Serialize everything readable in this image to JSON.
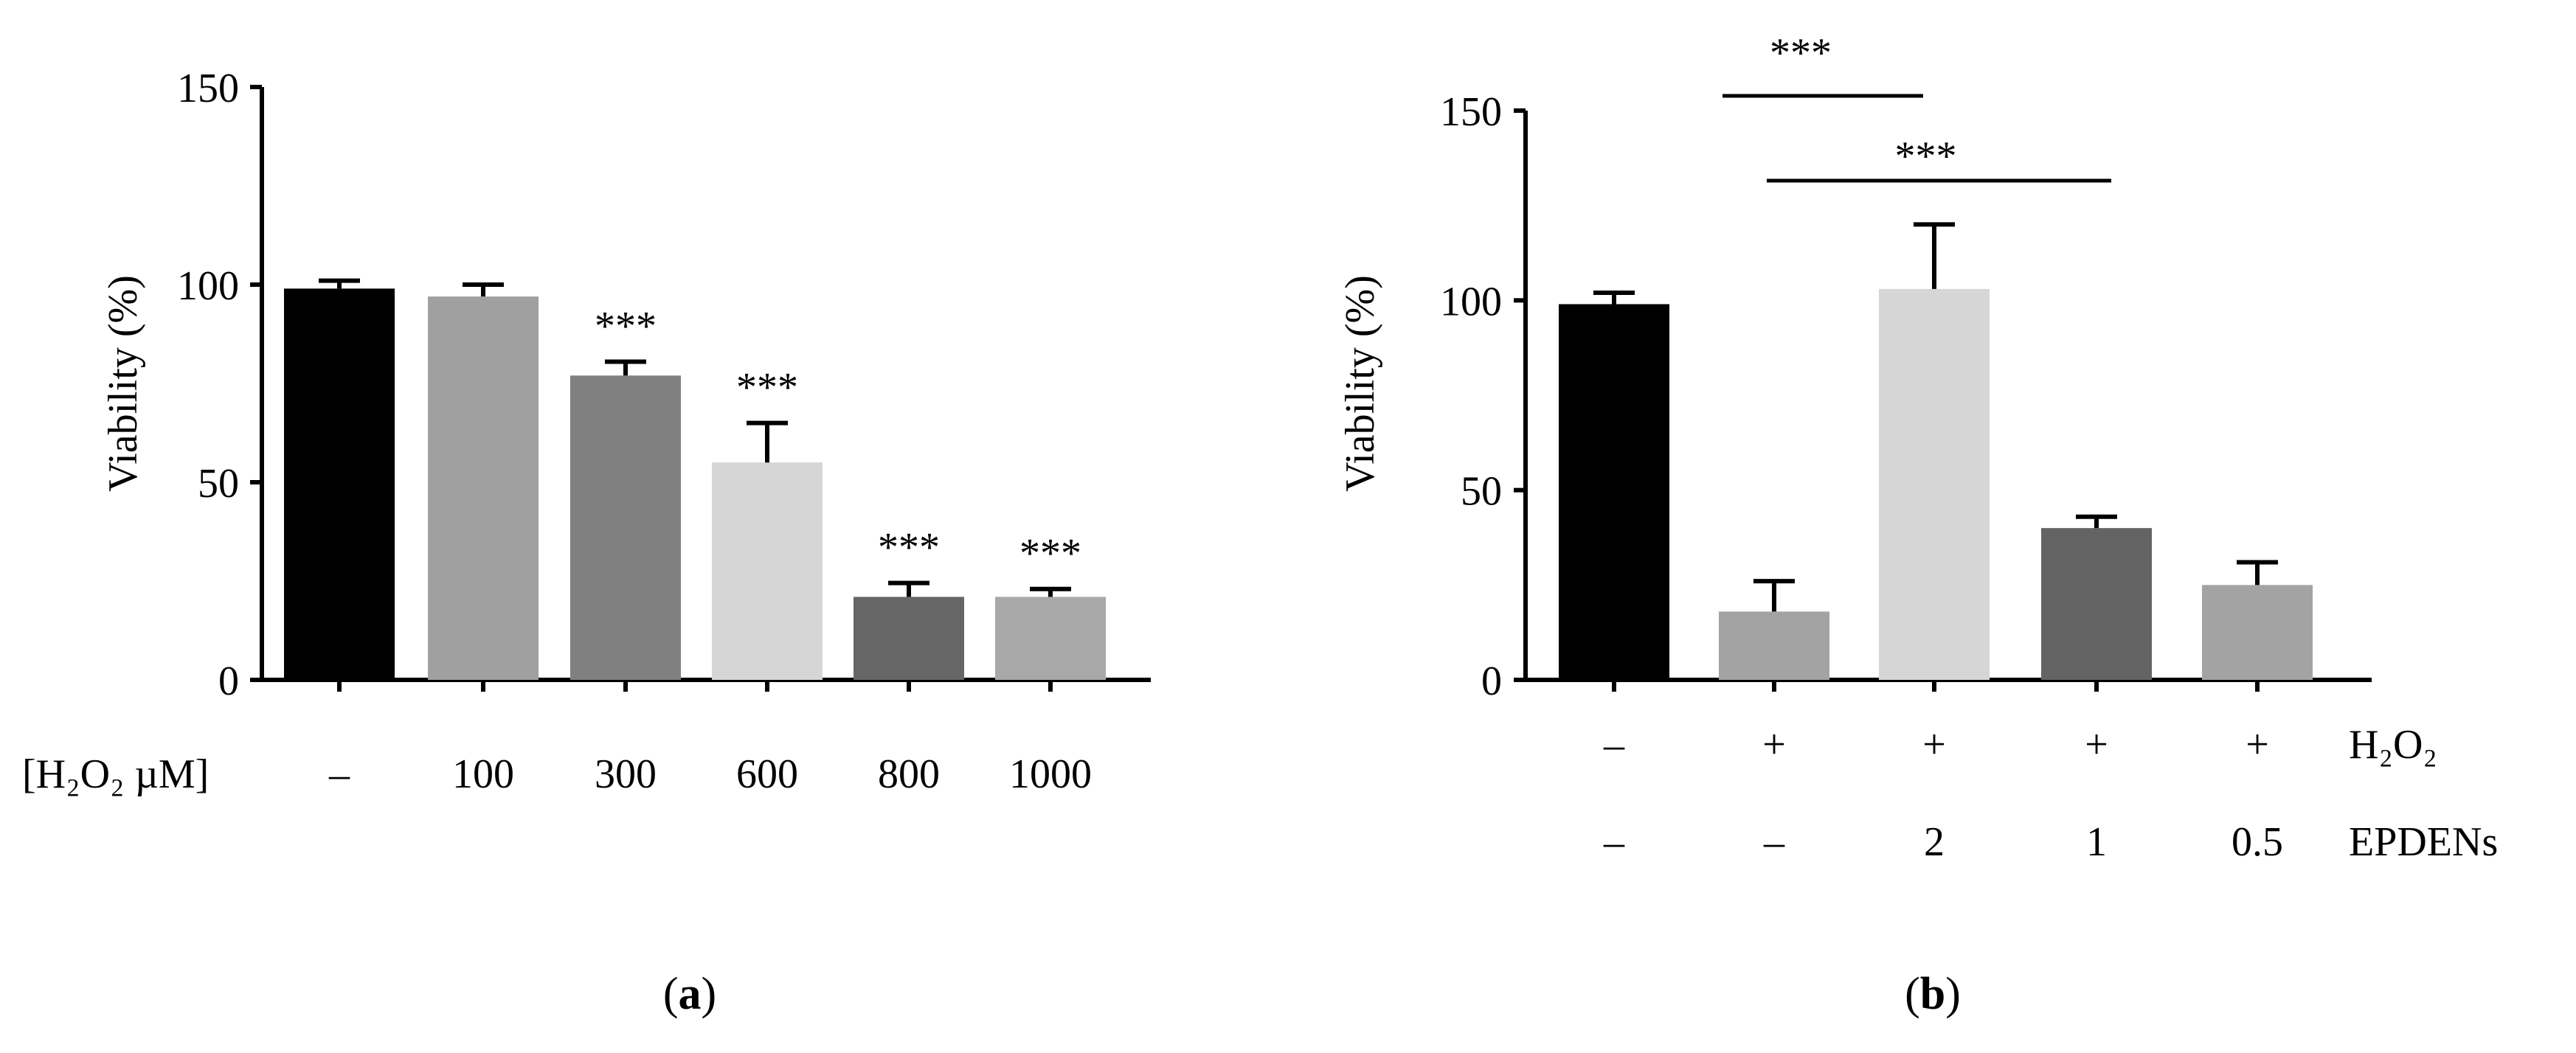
{
  "chart_data": [
    {
      "type": "bar",
      "panel_label": "a",
      "ylabel": "Viability (%)",
      "ylim": [
        0,
        150
      ],
      "yticks": [
        "0",
        "50",
        "100",
        "150"
      ],
      "row_label": "[H₂O₂ µM]",
      "categories": [
        "–",
        "100",
        "300",
        "600",
        "800",
        "1000"
      ],
      "values": [
        99,
        97,
        77,
        55,
        21,
        21
      ],
      "errors": [
        2,
        3,
        3.5,
        10,
        3.5,
        2
      ],
      "colors": [
        "#000000",
        "#a0a0a0",
        "#808080",
        "#d6d6d6",
        "#666666",
        "#a8a8a8"
      ],
      "significance": [
        "",
        "",
        "***",
        "***",
        "***",
        "***"
      ]
    },
    {
      "type": "bar",
      "panel_label": "b",
      "ylabel": "Viability (%)",
      "ylim": [
        0,
        150
      ],
      "yticks": [
        "0",
        "50",
        "100",
        "150"
      ],
      "rows": [
        {
          "label": "H₂O₂",
          "values": [
            "–",
            "+",
            "+",
            "+",
            "+"
          ]
        },
        {
          "label": "EPDENs",
          "values": [
            "–",
            "–",
            "2",
            "1",
            "0.5"
          ]
        }
      ],
      "values": [
        99,
        18,
        103,
        40,
        25
      ],
      "errors": [
        3,
        8,
        17,
        3,
        6
      ],
      "colors": [
        "#000000",
        "#a3a3a3",
        "#d6d6d6",
        "#636363",
        "#a3a3a3"
      ],
      "brackets": [
        {
          "from": 1,
          "to": 2,
          "label": "***"
        },
        {
          "from": 1,
          "to": 3,
          "label": "***"
        }
      ]
    }
  ]
}
